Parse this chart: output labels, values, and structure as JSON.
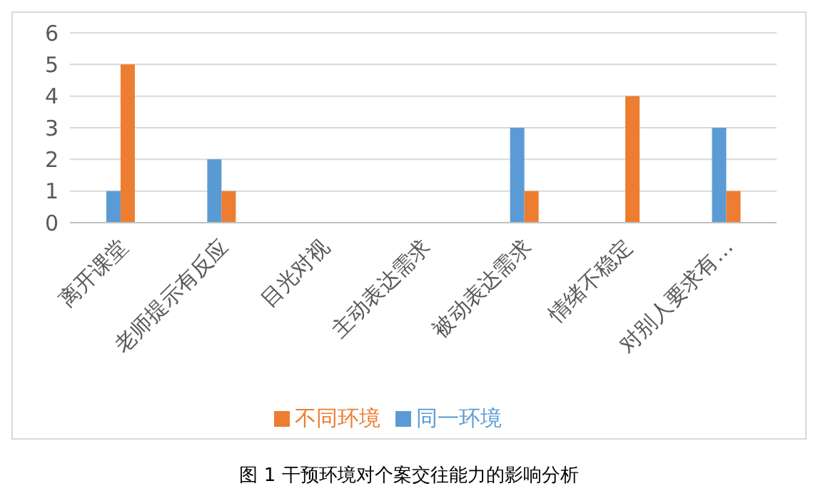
{
  "chart_data": {
    "type": "bar",
    "title": "图 1 干预环境对个案交往能力的影响分析",
    "categories": [
      "离开课堂",
      "老师提示有反应",
      "目光对视",
      "主动表达需求",
      "被动表达需求",
      "情绪不稳定",
      "对别人要求有…"
    ],
    "series": [
      {
        "name": "同一环境",
        "color": "#5b9bd5",
        "values": [
          1,
          2,
          0,
          0,
          3,
          0,
          3
        ]
      },
      {
        "name": "不同环境",
        "color": "#ed7d31",
        "values": [
          5,
          1,
          0,
          0,
          1,
          4,
          1
        ]
      }
    ],
    "ylim": [
      0,
      6
    ],
    "yticks": [
      0,
      1,
      2,
      3,
      4,
      5,
      6
    ],
    "grid": "y",
    "legend": "bottom"
  }
}
